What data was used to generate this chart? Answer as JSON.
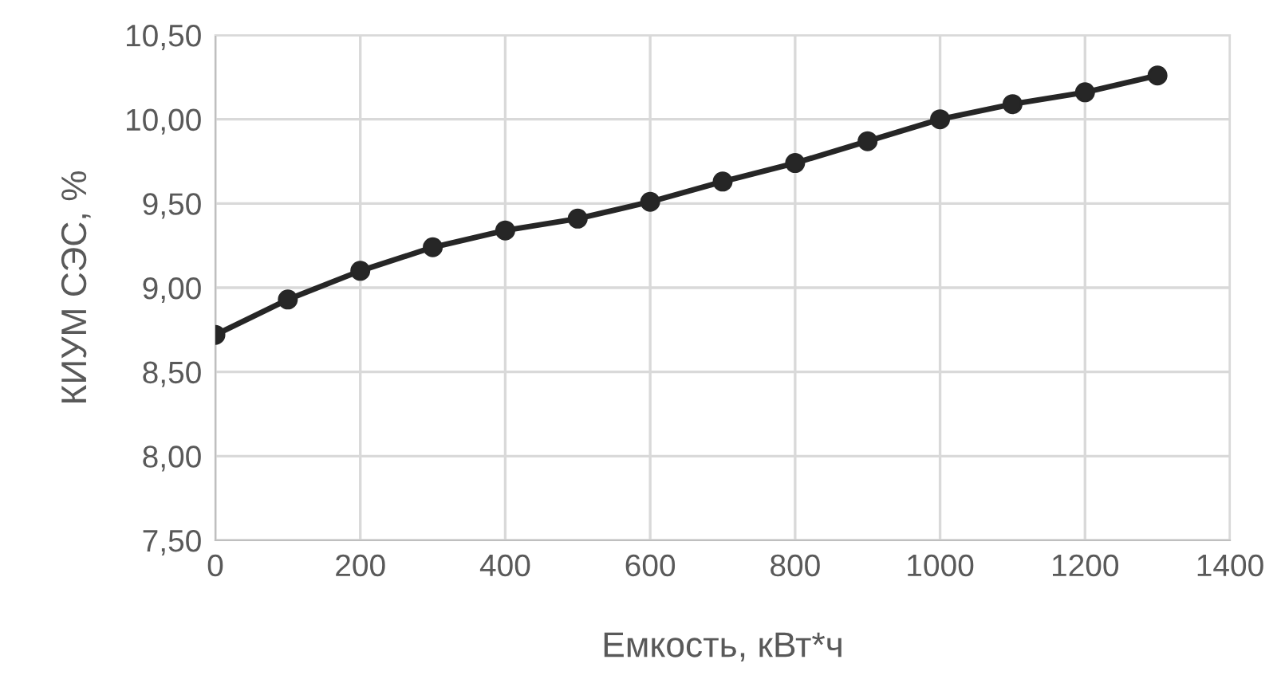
{
  "chart_data": {
    "type": "line",
    "xlabel": "Емкость, кВт*ч",
    "ylabel": "КИУМ СЭС, %",
    "x": [
      0,
      100,
      200,
      300,
      400,
      500,
      600,
      700,
      800,
      900,
      1000,
      1100,
      1200,
      1300
    ],
    "series": [
      {
        "color": "#262626",
        "values": [
          8.72,
          8.93,
          9.1,
          9.24,
          9.34,
          9.41,
          9.51,
          9.63,
          9.74,
          9.87,
          10.0,
          10.09,
          10.16,
          10.26
        ]
      }
    ],
    "xlim": [
      0,
      1400
    ],
    "xticks": [
      0,
      200,
      400,
      600,
      800,
      1000,
      1200,
      1400
    ],
    "ylim": [
      7.5,
      10.5
    ],
    "yticks": [
      {
        "value": 7.5,
        "label": "7,50"
      },
      {
        "value": 8.0,
        "label": "8,00"
      },
      {
        "value": 8.5,
        "label": "8,50"
      },
      {
        "value": 9.0,
        "label": "9,00"
      },
      {
        "value": 9.5,
        "label": "9,50"
      },
      {
        "value": 10.0,
        "label": "10,00"
      },
      {
        "value": 10.5,
        "label": "10,50"
      }
    ],
    "grid": true,
    "marker": "circle",
    "line_style": "solid"
  }
}
